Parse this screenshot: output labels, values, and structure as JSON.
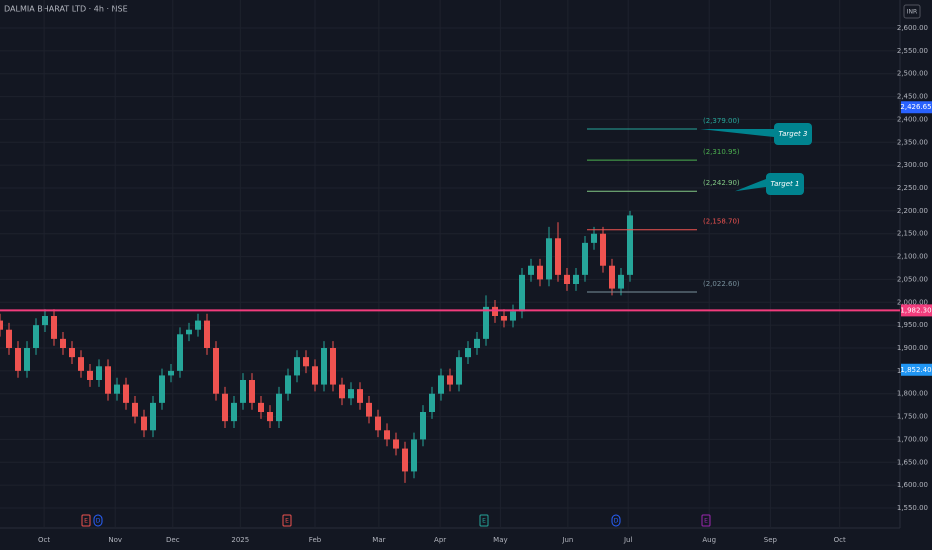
{
  "chart_data": {
    "type": "candlestick",
    "title": "DALMIA BHARAT LTD · 4h · NSE",
    "currency": "INR",
    "up_color": "#26a69a",
    "down_color": "#ef5350",
    "grid": true,
    "x": [
      0,
      1,
      2,
      3,
      4,
      5,
      6,
      7,
      8,
      9,
      10,
      11,
      12,
      13,
      14,
      15,
      16,
      17,
      18,
      19,
      20,
      21,
      22,
      23,
      24,
      25,
      26,
      27,
      28,
      29,
      30,
      31,
      32,
      33,
      34,
      35,
      36,
      37,
      38,
      39,
      40,
      41,
      42,
      43,
      44,
      45,
      46,
      47,
      48,
      49,
      50,
      51,
      52,
      53,
      54,
      55,
      56,
      57,
      58,
      59,
      60,
      61,
      62,
      63,
      64,
      65,
      66,
      67,
      68,
      69,
      70
    ],
    "open": [
      1960,
      1940,
      1900,
      1850,
      1900,
      1950,
      1970,
      1920,
      1900,
      1880,
      1850,
      1830,
      1860,
      1800,
      1820,
      1780,
      1750,
      1720,
      1780,
      1840,
      1850,
      1930,
      1940,
      1960,
      1900,
      1800,
      1740,
      1780,
      1830,
      1780,
      1760,
      1740,
      1800,
      1840,
      1880,
      1860,
      1820,
      1900,
      1820,
      1790,
      1810,
      1780,
      1750,
      1720,
      1700,
      1680,
      1630,
      1700,
      1760,
      1800,
      1840,
      1820,
      1880,
      1900,
      1920,
      1990,
      1970,
      1960,
      1980,
      2060,
      2080,
      2050,
      2140,
      2060,
      2040,
      2060,
      2130,
      2150,
      2080,
      2030,
      2060
    ],
    "high": [
      1975,
      1955,
      1915,
      1915,
      1965,
      1985,
      1985,
      1935,
      1915,
      1895,
      1865,
      1875,
      1875,
      1835,
      1835,
      1795,
      1765,
      1795,
      1855,
      1865,
      1945,
      1955,
      1975,
      1975,
      1915,
      1815,
      1795,
      1845,
      1845,
      1795,
      1775,
      1815,
      1855,
      1895,
      1895,
      1875,
      1915,
      1915,
      1835,
      1825,
      1825,
      1795,
      1765,
      1735,
      1715,
      1695,
      1715,
      1775,
      1815,
      1855,
      1855,
      1895,
      1915,
      1935,
      2015,
      2005,
      1985,
      1995,
      2075,
      2095,
      2095,
      2165,
      2175,
      2075,
      2075,
      2145,
      2165,
      2165,
      2095,
      2075,
      2200
    ],
    "low": [
      1925,
      1885,
      1835,
      1835,
      1885,
      1935,
      1905,
      1885,
      1865,
      1835,
      1815,
      1815,
      1785,
      1785,
      1765,
      1735,
      1705,
      1705,
      1765,
      1825,
      1835,
      1915,
      1925,
      1885,
      1785,
      1725,
      1725,
      1765,
      1765,
      1745,
      1725,
      1725,
      1785,
      1825,
      1845,
      1805,
      1805,
      1805,
      1775,
      1775,
      1765,
      1735,
      1705,
      1685,
      1665,
      1605,
      1615,
      1685,
      1745,
      1785,
      1805,
      1805,
      1865,
      1885,
      1905,
      1955,
      1945,
      1945,
      1965,
      2045,
      2035,
      2035,
      2045,
      2025,
      2025,
      2045,
      2115,
      2065,
      2015,
      2015,
      2045
    ],
    "close": [
      1940,
      1900,
      1850,
      1900,
      1950,
      1970,
      1920,
      1900,
      1880,
      1850,
      1830,
      1860,
      1800,
      1820,
      1780,
      1750,
      1720,
      1780,
      1840,
      1850,
      1930,
      1940,
      1960,
      1900,
      1800,
      1740,
      1780,
      1830,
      1780,
      1760,
      1740,
      1800,
      1840,
      1880,
      1860,
      1820,
      1900,
      1820,
      1790,
      1810,
      1780,
      1750,
      1720,
      1700,
      1680,
      1630,
      1700,
      1760,
      1800,
      1840,
      1820,
      1880,
      1900,
      1920,
      1990,
      1970,
      1960,
      1980,
      2060,
      2080,
      2050,
      2140,
      2060,
      2040,
      2060,
      2130,
      2150,
      2080,
      2030,
      2060,
      2190
    ],
    "xlim": [
      0,
      100
    ],
    "xticks": [
      {
        "value": 4.9,
        "label": "Oct"
      },
      {
        "value": 12.8,
        "label": "Nov"
      },
      {
        "value": 19.2,
        "label": "Dec"
      },
      {
        "value": 26.7,
        "label": "2025"
      },
      {
        "value": 35,
        "label": "Feb"
      },
      {
        "value": 42.1,
        "label": "Mar"
      },
      {
        "value": 48.9,
        "label": "Apr"
      },
      {
        "value": 55.6,
        "label": "May"
      },
      {
        "value": 63.1,
        "label": "Jun"
      },
      {
        "value": 69.8,
        "label": "Jul"
      },
      {
        "value": 78.8,
        "label": "Aug"
      },
      {
        "value": 85.6,
        "label": "Sep"
      },
      {
        "value": 93.3,
        "label": "Oct"
      }
    ],
    "ylim": [
      1550,
      2600
    ],
    "yticks": [
      {
        "value": 1550,
        "label": "1,550.00"
      },
      {
        "value": 1600,
        "label": "1,600.00"
      },
      {
        "value": 1650,
        "label": "1,650.00"
      },
      {
        "value": 1700,
        "label": "1,700.00"
      },
      {
        "value": 1750,
        "label": "1,750.00"
      },
      {
        "value": 1800,
        "label": "1,800.00"
      },
      {
        "value": 1850,
        "label": "1,850.00"
      },
      {
        "value": 1900,
        "label": "1,900.00"
      },
      {
        "value": 1950,
        "label": "1,950.00"
      },
      {
        "value": 2000,
        "label": "2,000.00"
      },
      {
        "value": 2050,
        "label": "2,050.00"
      },
      {
        "value": 2100,
        "label": "2,100.00"
      },
      {
        "value": 2150,
        "label": "2,150.00"
      },
      {
        "value": 2200,
        "label": "2,200.00"
      },
      {
        "value": 2250,
        "label": "2,250.00"
      },
      {
        "value": 2300,
        "label": "2,300.00"
      },
      {
        "value": 2350,
        "label": "2,350.00"
      },
      {
        "value": 2400,
        "label": "2,400.00"
      },
      {
        "value": 2450,
        "label": "2,450.00"
      },
      {
        "value": 2500,
        "label": "2,500.00"
      },
      {
        "value": 2550,
        "label": "2,550.00"
      },
      {
        "value": 2600,
        "label": "2,600.00"
      }
    ],
    "levels": [
      {
        "value": 2379,
        "label": "(2,379.00)",
        "color": "#26a69a"
      },
      {
        "value": 2310.95,
        "label": "(2,310.95)",
        "color": "#4caf50"
      },
      {
        "value": 2242.9,
        "label": "(2,242.90)",
        "color": "#81c784"
      },
      {
        "value": 2158.7,
        "label": "(2,158.70)",
        "color": "#ef5350"
      },
      {
        "value": 2022.6,
        "label": "(2,022.60)",
        "color": "#78909c"
      }
    ],
    "annotations": [
      "Target 3",
      "Target 1"
    ],
    "price_tags": [
      {
        "value": 2426.65,
        "label": "2,426.65",
        "color": "#2962ff"
      },
      {
        "value": 1982.3,
        "label": "1,982.30",
        "color": "#f23c7c"
      },
      {
        "value": 1852.4,
        "label": "1,852.40",
        "color": "#2196f3"
      }
    ],
    "events": [
      {
        "label": "E",
        "color": "#ef5350"
      },
      {
        "label": "D",
        "color": "#2962ff"
      },
      {
        "label": "E",
        "color": "#ef5350"
      },
      {
        "label": "E",
        "color": "#26a69a"
      },
      {
        "label": "D",
        "color": "#2962ff"
      },
      {
        "label": "E",
        "color": "#9c27b0"
      }
    ]
  }
}
